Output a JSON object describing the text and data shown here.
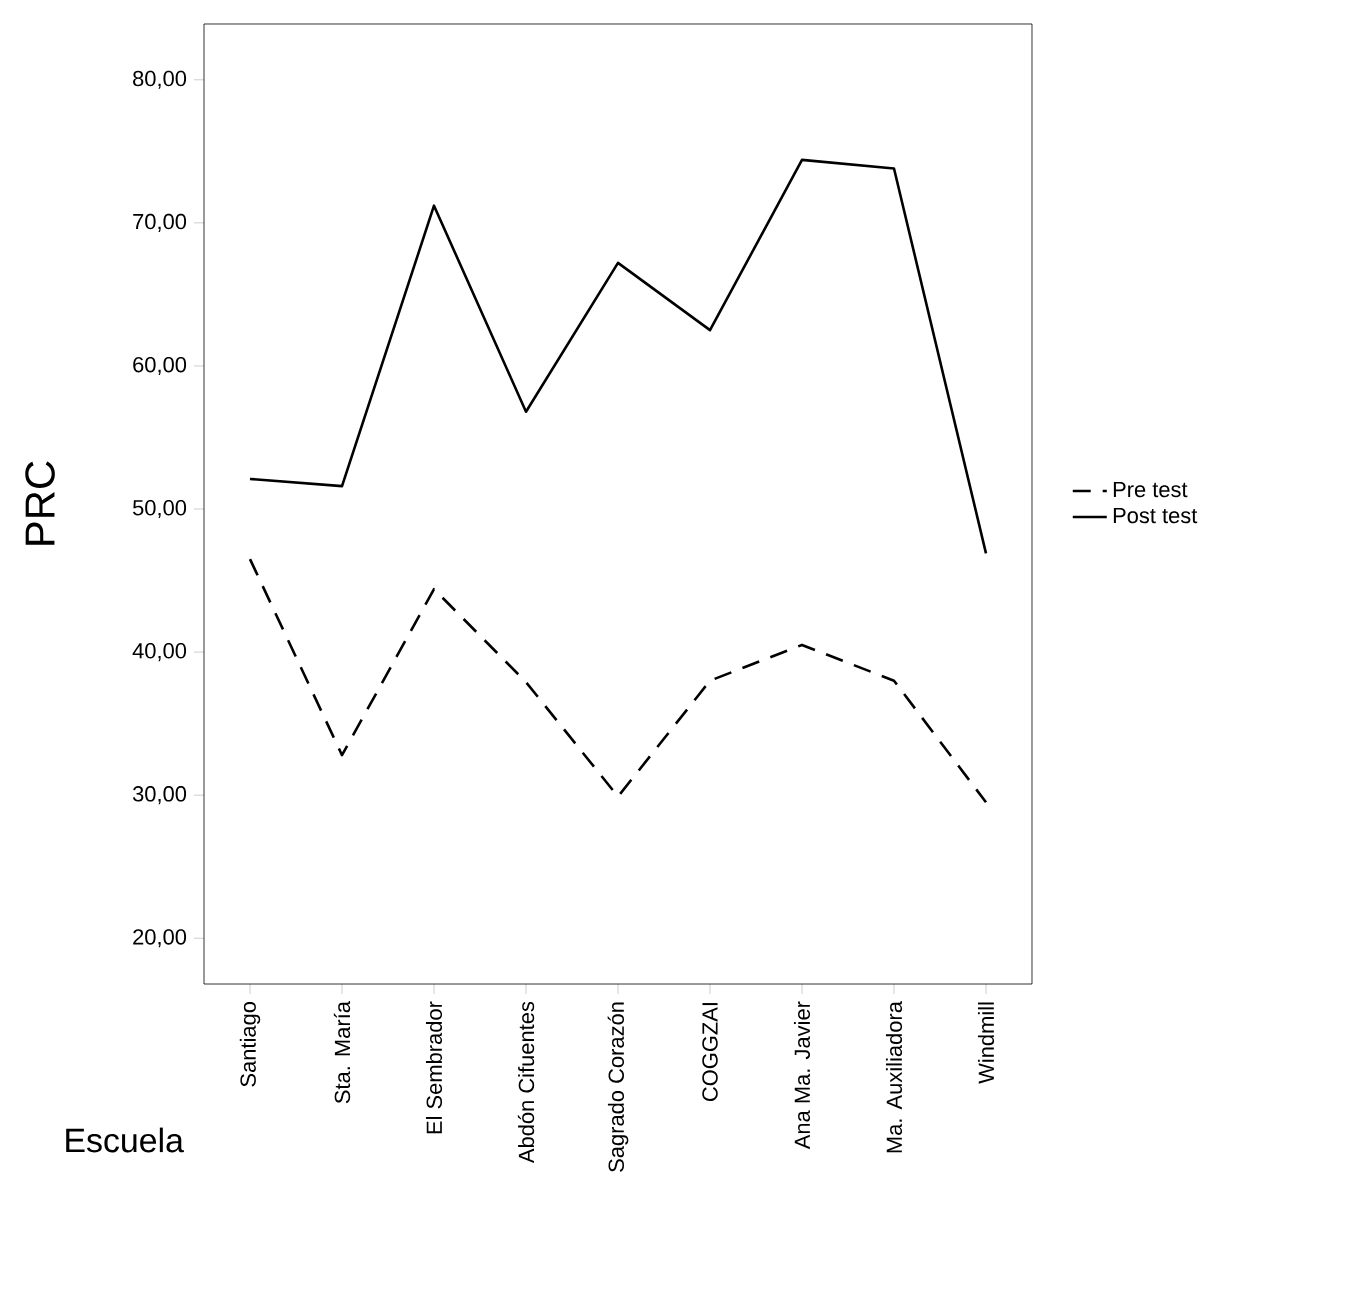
{
  "chart_data": {
    "type": "line",
    "xlabel": "Escuela",
    "ylabel": "PRC",
    "categories": [
      "Santiago",
      "Sta. María",
      "El Sembrador",
      "Abdón Cifuentes",
      "Sagrado Corazón",
      "COGGZAI",
      "Ana Ma. Javier",
      "Ma. Auxiliadora",
      "Windmill"
    ],
    "series": [
      {
        "name": "Pre test",
        "color": "#000000",
        "line_style": "dashed",
        "values": [
          46.5,
          32.8,
          44.4,
          37.9,
          29.9,
          38.0,
          40.5,
          38.0,
          29.5
        ]
      },
      {
        "name": "Post test",
        "color": "#000000",
        "line_style": "solid",
        "values": [
          52.1,
          51.6,
          71.2,
          56.8,
          67.2,
          62.5,
          74.4,
          73.8,
          46.9
        ]
      }
    ],
    "ylim": [
      16.8,
      83.9
    ],
    "yticks": [
      {
        "value": 20,
        "label": "20,00"
      },
      {
        "value": 30,
        "label": "30,00"
      },
      {
        "value": 40,
        "label": "40,00"
      },
      {
        "value": 50,
        "label": "50,00"
      },
      {
        "value": 60,
        "label": "60,00"
      },
      {
        "value": 70,
        "label": "70,00"
      },
      {
        "value": 80,
        "label": "80,00"
      }
    ],
    "grid": false,
    "legend": "right",
    "marker": "none"
  }
}
